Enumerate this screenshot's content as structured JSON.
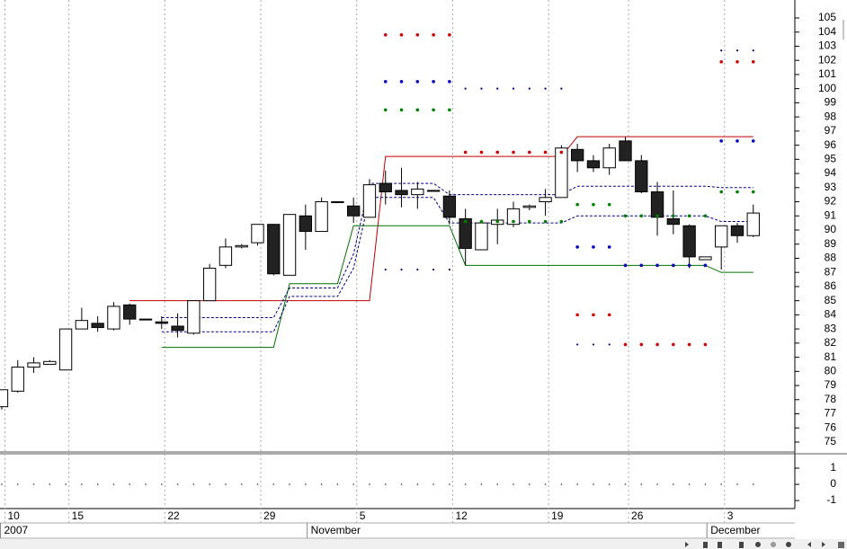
{
  "chart_data": [
    {
      "type": "candlestick",
      "open": [
        77.5,
        78.6,
        80.3,
        80.5,
        80.1,
        83.0,
        83.4,
        83.0,
        84.7,
        83.7,
        83.5,
        83.2,
        82.7,
        85.0,
        87.5,
        88.8,
        89.1,
        90.4,
        86.8,
        91.0,
        89.9,
        92.0,
        91.7,
        90.9,
        93.3,
        92.8,
        92.5,
        92.8,
        92.4,
        90.8,
        88.6,
        90.4,
        90.4,
        91.6,
        92.0,
        92.3,
        95.7,
        94.9,
        94.4,
        96.3,
        94.9,
        92.7,
        90.8,
        90.3,
        87.9,
        88.8,
        90.3,
        89.6
      ],
      "high": [
        78.7,
        80.8,
        81.0,
        80.8,
        83.0,
        84.5,
        83.9,
        84.9,
        84.8,
        83.7,
        83.9,
        84.1,
        85.0,
        87.6,
        89.4,
        89.0,
        90.4,
        90.4,
        91.1,
        91.8,
        92.3,
        92.0,
        92.3,
        93.6,
        94.2,
        94.4,
        93.4,
        92.8,
        92.8,
        91.5,
        90.6,
        91.5,
        92.0,
        91.8,
        92.9,
        96.0,
        96.1,
        95.3,
        96.1,
        96.6,
        95.3,
        93.4,
        92.8,
        90.4,
        88.1,
        90.3,
        90.5,
        91.8
      ],
      "low": [
        77.3,
        78.5,
        79.9,
        80.5,
        80.1,
        83.0,
        82.8,
        82.9,
        83.3,
        83.7,
        83.0,
        82.4,
        82.6,
        85.0,
        87.3,
        88.7,
        88.9,
        86.8,
        86.8,
        88.6,
        89.9,
        91.9,
        90.5,
        90.9,
        91.8,
        91.6,
        91.5,
        92.8,
        90.4,
        87.5,
        88.6,
        89.0,
        90.2,
        91.4,
        91.0,
        92.3,
        94.1,
        94.1,
        93.9,
        94.9,
        92.6,
        89.6,
        89.7,
        87.3,
        87.9,
        87.2,
        89.1,
        89.5
      ],
      "close": [
        78.7,
        80.3,
        80.6,
        80.7,
        83.0,
        83.6,
        83.1,
        84.6,
        83.7,
        83.7,
        83.4,
        82.9,
        85.0,
        87.3,
        88.8,
        88.9,
        90.4,
        86.9,
        91.1,
        89.9,
        92.0,
        92.0,
        91.0,
        93.2,
        92.7,
        92.5,
        92.9,
        92.8,
        90.9,
        88.7,
        90.5,
        90.7,
        91.5,
        91.7,
        92.3,
        95.8,
        94.9,
        94.4,
        95.8,
        94.9,
        92.7,
        90.9,
        90.4,
        88.1,
        88.1,
        90.3,
        89.6,
        91.2
      ],
      "up_color": "#ffffff",
      "down_color": "#222222",
      "lines": [
        {
          "color": "#c00000",
          "dash": false,
          "values": [
            null,
            null,
            null,
            null,
            null,
            null,
            null,
            null,
            85.0,
            85.0,
            85.0,
            85.0,
            85.0,
            85.0,
            85.0,
            85.0,
            85.0,
            85.0,
            85.0,
            85.0,
            85.0,
            85.0,
            85.0,
            85.0,
            95.2,
            95.2,
            95.2,
            95.2,
            95.2,
            95.2,
            95.2,
            95.2,
            95.2,
            95.2,
            95.2,
            95.2,
            96.6,
            96.6,
            96.6,
            96.6,
            96.6,
            96.6,
            96.6,
            96.6,
            96.6,
            96.6,
            96.6,
            96.6
          ]
        },
        {
          "color": "#007000",
          "dash": false,
          "values": [
            null,
            null,
            null,
            null,
            null,
            null,
            null,
            null,
            null,
            null,
            81.7,
            81.7,
            81.7,
            81.7,
            81.7,
            81.7,
            81.7,
            81.7,
            86.2,
            86.2,
            86.2,
            86.2,
            90.3,
            90.3,
            90.3,
            90.3,
            90.3,
            90.3,
            90.3,
            87.5,
            87.5,
            87.5,
            87.5,
            87.5,
            87.5,
            87.5,
            87.5,
            87.5,
            87.5,
            87.5,
            87.5,
            87.5,
            87.5,
            87.5,
            87.5,
            87.0,
            87.0,
            87.0
          ]
        },
        {
          "color": "#00008b",
          "dash": true,
          "values": [
            null,
            null,
            null,
            null,
            null,
            null,
            null,
            null,
            null,
            null,
            83.8,
            83.8,
            83.8,
            83.8,
            83.8,
            83.8,
            83.8,
            83.8,
            85.9,
            85.9,
            85.9,
            85.9,
            88.3,
            93.3,
            93.3,
            93.3,
            93.3,
            93.3,
            92.5,
            92.5,
            92.5,
            92.5,
            92.5,
            92.5,
            92.5,
            92.5,
            93.1,
            93.1,
            93.1,
            93.1,
            93.1,
            93.1,
            93.1,
            93.1,
            93.1,
            93.0,
            93.0,
            93.0
          ]
        },
        {
          "color": "#00008b",
          "dash": true,
          "values": [
            null,
            null,
            null,
            null,
            null,
            null,
            null,
            null,
            null,
            null,
            82.8,
            82.8,
            82.8,
            82.8,
            82.8,
            82.8,
            82.8,
            82.8,
            85.3,
            85.3,
            85.3,
            85.3,
            87.3,
            92.3,
            92.3,
            92.3,
            92.3,
            92.3,
            90.5,
            90.5,
            90.5,
            90.5,
            90.5,
            90.5,
            90.5,
            90.5,
            91.0,
            91.0,
            91.0,
            91.0,
            91.0,
            91.0,
            91.0,
            91.0,
            91.0,
            90.6,
            90.6,
            90.6
          ]
        }
      ],
      "markers": [
        {
          "color": "#d00000",
          "size": 1.8,
          "x": [
            24,
            25,
            26,
            27,
            28,
            29,
            30,
            31,
            32,
            33,
            34,
            35,
            36,
            37,
            38,
            39,
            40,
            41,
            42,
            43,
            44,
            45,
            46,
            47
          ],
          "values": [
            103.8,
            103.8,
            103.8,
            103.8,
            103.8,
            95.5,
            95.5,
            95.5,
            95.5,
            95.5,
            95.5,
            95.5,
            84.0,
            84.0,
            84.0,
            81.9,
            81.9,
            81.9,
            81.9,
            81.9,
            81.9,
            101.9,
            101.9,
            101.9
          ]
        },
        {
          "color": "#0000c0",
          "size": 1.8,
          "x": [
            24,
            25,
            26,
            27,
            28,
            36,
            37,
            38,
            39,
            40,
            41,
            42,
            43,
            44,
            45,
            46,
            47
          ],
          "values": [
            100.5,
            100.5,
            100.5,
            100.5,
            100.5,
            88.8,
            88.8,
            88.8,
            87.5,
            87.5,
            87.5,
            87.5,
            87.5,
            87.5,
            96.3,
            96.3,
            96.3
          ]
        },
        {
          "color": "#000080",
          "size": 1.1,
          "x": [
            24,
            25,
            26,
            27,
            28,
            29,
            30,
            31,
            32,
            33,
            34,
            35,
            36,
            37,
            38,
            45,
            46,
            47
          ],
          "values": [
            87.2,
            87.2,
            87.2,
            87.2,
            87.2,
            100.0,
            100.0,
            100.0,
            100.0,
            100.0,
            100.0,
            100.0,
            81.9,
            81.9,
            81.9,
            102.7,
            102.7,
            102.7
          ]
        },
        {
          "color": "#008000",
          "size": 1.8,
          "x": [
            24,
            25,
            26,
            27,
            28,
            29,
            30,
            31,
            32,
            33,
            34,
            35,
            36,
            37,
            38,
            39,
            40,
            41,
            42,
            43,
            44,
            45,
            46,
            47
          ],
          "values": [
            98.5,
            98.5,
            98.5,
            98.5,
            98.5,
            90.6,
            90.6,
            90.6,
            90.6,
            90.6,
            90.6,
            90.6,
            91.8,
            91.8,
            91.8,
            91.0,
            91.0,
            91.0,
            91.0,
            91.0,
            91.0,
            92.7,
            92.7,
            92.7
          ]
        }
      ],
      "ylim": [
        74.3,
        106.27
      ],
      "yticks": [
        75,
        76,
        77,
        78,
        79,
        80,
        81,
        82,
        83,
        84,
        85,
        86,
        87,
        88,
        89,
        90,
        91,
        92,
        93,
        94,
        95,
        96,
        97,
        98,
        99,
        100,
        101,
        102,
        103,
        104,
        105
      ],
      "xlim": [
        -0.11,
        49.6
      ],
      "xticks": [
        {
          "value": 0.2,
          "label": "10"
        },
        {
          "value": 4.2,
          "label": "15"
        },
        {
          "value": 10.2,
          "label": "22"
        },
        {
          "value": 16.2,
          "label": "29"
        },
        {
          "value": 22.2,
          "label": "5"
        },
        {
          "value": 28.2,
          "label": "12"
        },
        {
          "value": 34.2,
          "label": "19"
        },
        {
          "value": 39.2,
          "label": "26"
        },
        {
          "value": 45.2,
          "label": "3"
        }
      ],
      "period_ticks": [
        {
          "value": -0.11,
          "label": "2007"
        },
        {
          "value": 19.1,
          "label": "November"
        },
        {
          "value": 44.1,
          "label": "December"
        }
      ],
      "grid": true
    },
    {
      "type": "scatter",
      "color": "#333333",
      "values": [
        0,
        0,
        0,
        0,
        0,
        0,
        0,
        0,
        0,
        0,
        0,
        0,
        0,
        0,
        0,
        0,
        0,
        0,
        0,
        0,
        0,
        0,
        0,
        0,
        0,
        0,
        0,
        0,
        0,
        0,
        0,
        0,
        0,
        0,
        0,
        0,
        0,
        0,
        0,
        0,
        0,
        0,
        0,
        0,
        0,
        0,
        0,
        0
      ],
      "ylim": [
        -1.44,
        1.89
      ],
      "yticks": [
        1,
        0,
        -1
      ],
      "xlim": [
        -0.11,
        49.6
      ]
    }
  ]
}
